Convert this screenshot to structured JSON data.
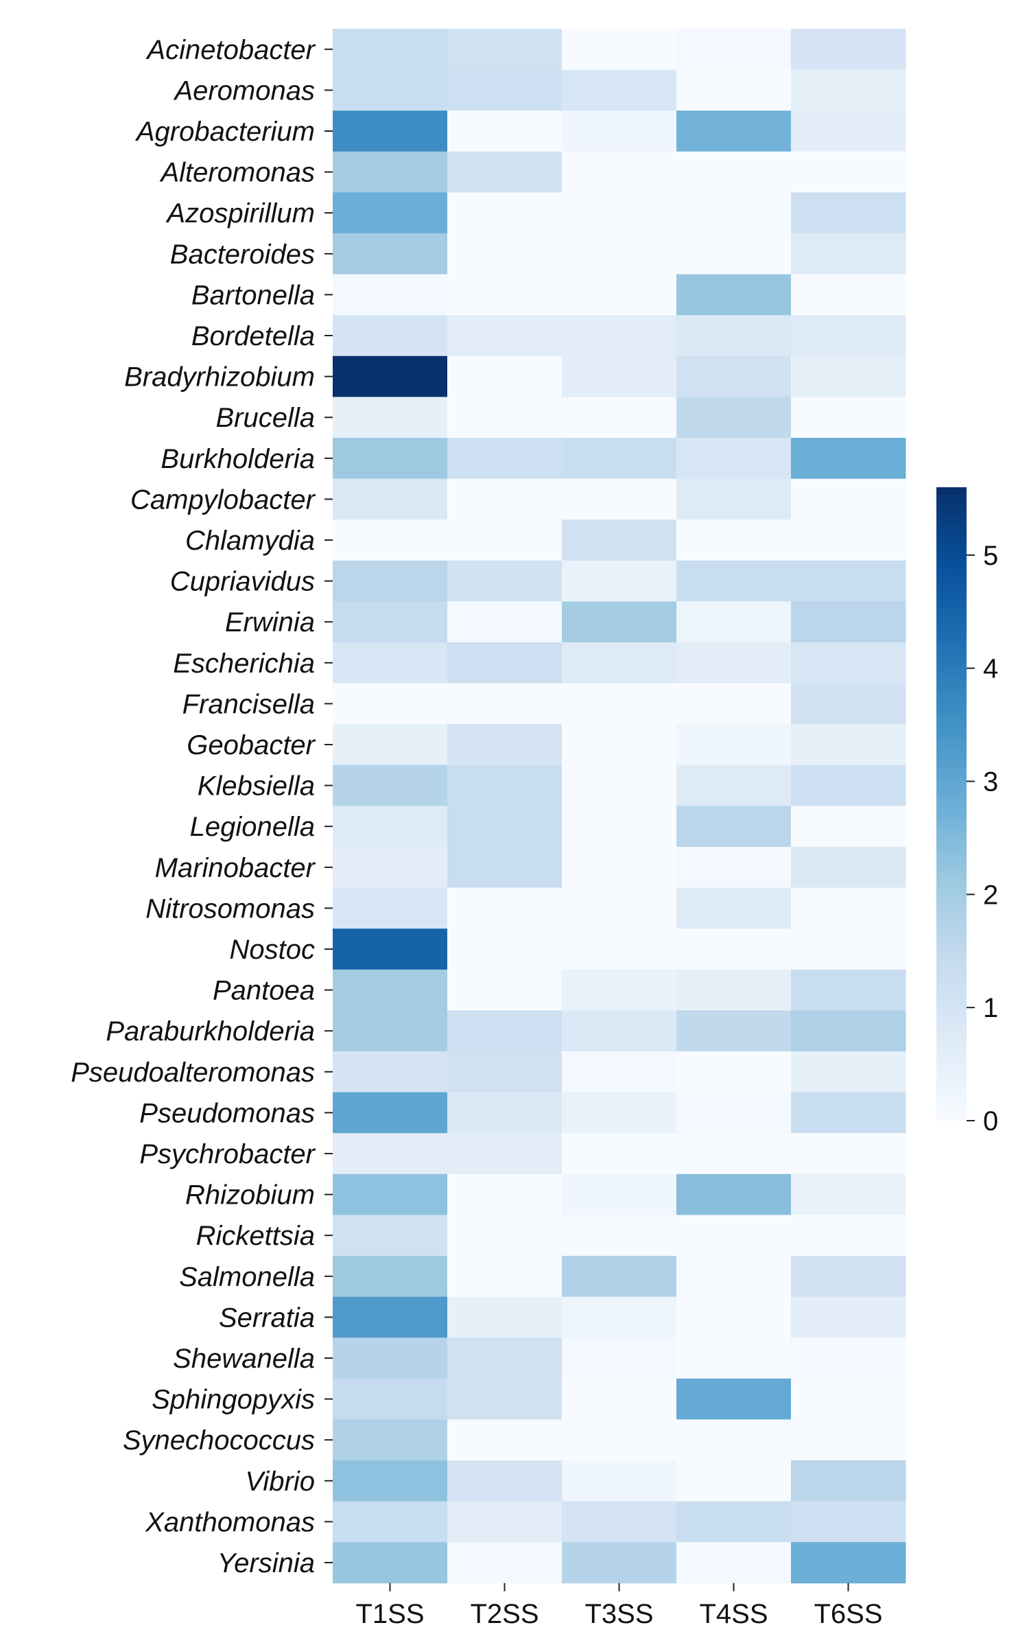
{
  "chart_data": {
    "type": "heatmap",
    "title": "",
    "xlabel": "",
    "ylabel": "",
    "columns": [
      "T1SS",
      "T2SS",
      "T3SS",
      "T4SS",
      "T6SS"
    ],
    "rows": [
      "Acinetobacter",
      "Aeromonas",
      "Agrobacterium",
      "Alteromonas",
      "Azospirillum",
      "Bacteroides",
      "Bartonella",
      "Bordetella",
      "Bradyrhizobium",
      "Brucella",
      "Burkholderia",
      "Campylobacter",
      "Chlamydia",
      "Cupriavidus",
      "Erwinia",
      "Escherichia",
      "Francisella",
      "Geobacter",
      "Klebsiella",
      "Legionella",
      "Marinobacter",
      "Nitrosomonas",
      "Nostoc",
      "Pantoea",
      "Paraburkholderia",
      "Pseudoalteromonas",
      "Pseudomonas",
      "Psychrobacter",
      "Rhizobium",
      "Rickettsia",
      "Salmonella",
      "Serratia",
      "Shewanella",
      "Sphingopyxis",
      "Synechococcus",
      "Vibrio",
      "Xanthomonas",
      "Yersinia"
    ],
    "values": [
      [
        1.3,
        1.1,
        0.0,
        0.1,
        1.0
      ],
      [
        1.3,
        1.2,
        0.9,
        0.0,
        0.5
      ],
      [
        3.6,
        0.0,
        0.2,
        2.7,
        0.6
      ],
      [
        2.0,
        1.1,
        0.0,
        0.0,
        0.0
      ],
      [
        2.8,
        0.0,
        0.0,
        0.0,
        1.2
      ],
      [
        2.0,
        0.0,
        0.0,
        0.0,
        0.7
      ],
      [
        0.1,
        0.0,
        0.0,
        2.2,
        0.0
      ],
      [
        1.0,
        0.6,
        0.6,
        0.8,
        0.7
      ],
      [
        5.6,
        0.0,
        0.6,
        1.1,
        0.5
      ],
      [
        0.5,
        0.0,
        0.0,
        1.5,
        0.0
      ],
      [
        2.1,
        1.2,
        1.3,
        0.9,
        2.8
      ],
      [
        0.8,
        0.0,
        0.0,
        0.7,
        0.0
      ],
      [
        0.0,
        0.0,
        1.1,
        0.0,
        0.0
      ],
      [
        1.6,
        1.1,
        0.4,
        1.3,
        1.3
      ],
      [
        1.4,
        0.1,
        2.0,
        0.3,
        1.6
      ],
      [
        0.9,
        1.2,
        0.7,
        0.6,
        0.9
      ],
      [
        0.0,
        0.0,
        0.0,
        0.0,
        1.1
      ],
      [
        0.5,
        1.0,
        0.0,
        0.2,
        0.5
      ],
      [
        1.7,
        1.3,
        0.0,
        0.7,
        1.2
      ],
      [
        0.7,
        1.3,
        0.0,
        1.6,
        0.0
      ],
      [
        0.6,
        1.3,
        0.0,
        0.1,
        0.8
      ],
      [
        0.9,
        0.0,
        0.0,
        0.7,
        0.0
      ],
      [
        4.5,
        0.0,
        0.0,
        0.0,
        0.0
      ],
      [
        2.0,
        0.0,
        0.4,
        0.5,
        1.3
      ],
      [
        2.0,
        1.2,
        0.8,
        1.5,
        1.8
      ],
      [
        1.0,
        1.1,
        0.1,
        0.0,
        0.5
      ],
      [
        3.0,
        0.8,
        0.4,
        0.1,
        1.3
      ],
      [
        0.6,
        0.6,
        0.0,
        0.0,
        0.0
      ],
      [
        2.3,
        0.0,
        0.2,
        2.4,
        0.4
      ],
      [
        1.1,
        0.0,
        0.0,
        0.0,
        0.0
      ],
      [
        2.1,
        0.0,
        1.8,
        0.0,
        1.1
      ],
      [
        3.3,
        0.5,
        0.3,
        0.0,
        0.6
      ],
      [
        1.7,
        1.1,
        0.1,
        0.0,
        0.1
      ],
      [
        1.4,
        1.1,
        0.0,
        2.9,
        0.0
      ],
      [
        1.8,
        0.0,
        0.0,
        0.0,
        0.0
      ],
      [
        2.3,
        1.0,
        0.2,
        0.0,
        1.6
      ],
      [
        1.3,
        0.6,
        1.0,
        1.3,
        1.2
      ],
      [
        2.2,
        0.1,
        1.7,
        0.1,
        2.8
      ]
    ],
    "colorbar": {
      "min": 0,
      "max": 5.6,
      "ticks": [
        "0",
        "1",
        "2",
        "3",
        "4",
        "5"
      ],
      "colormap": [
        "#f7fbff",
        "#deebf7",
        "#c6dbef",
        "#9ecae1",
        "#6baed6",
        "#4292c6",
        "#2171b5",
        "#08519c",
        "#08306b"
      ]
    },
    "grid": false,
    "legend": "colorbar-right"
  }
}
